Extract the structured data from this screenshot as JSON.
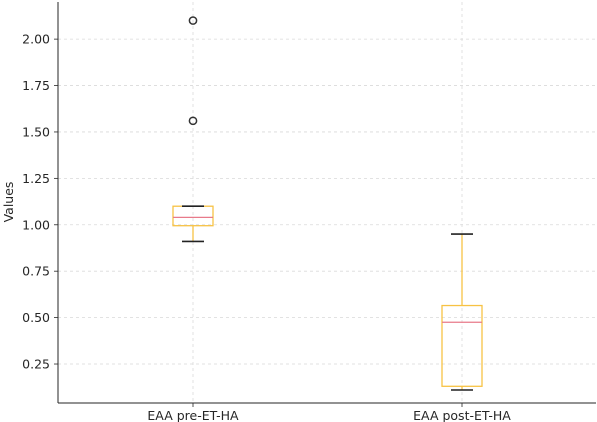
{
  "chart_data": {
    "type": "box",
    "title": "",
    "xlabel": "",
    "ylabel": "Values",
    "ylim": [
      0.04,
      2.2
    ],
    "yticks": [
      0.25,
      0.5,
      0.75,
      1.0,
      1.25,
      1.5,
      1.75,
      2.0
    ],
    "ytick_labels": [
      "0.25",
      "0.50",
      "0.75",
      "1.00",
      "1.25",
      "1.50",
      "1.75",
      "2.00"
    ],
    "grid": true,
    "categories": [
      "EAA pre-ET-HA",
      "EAA post-ET-HA"
    ],
    "boxes": [
      {
        "whisker_low": 0.91,
        "q1": 0.995,
        "median": 1.04,
        "q3": 1.1,
        "whisker_high": 1.1,
        "outliers": [
          1.56,
          2.1
        ]
      },
      {
        "whisker_low": 0.11,
        "q1": 0.13,
        "median": 0.475,
        "q3": 0.565,
        "whisker_high": 0.95,
        "outliers": []
      }
    ],
    "colors": {
      "box": "#f7c244",
      "median": "#e87a8a",
      "whisker_cap": "#222222",
      "outlier": "#333333",
      "grid": "#d9d9d9",
      "axis": "#262626"
    }
  }
}
